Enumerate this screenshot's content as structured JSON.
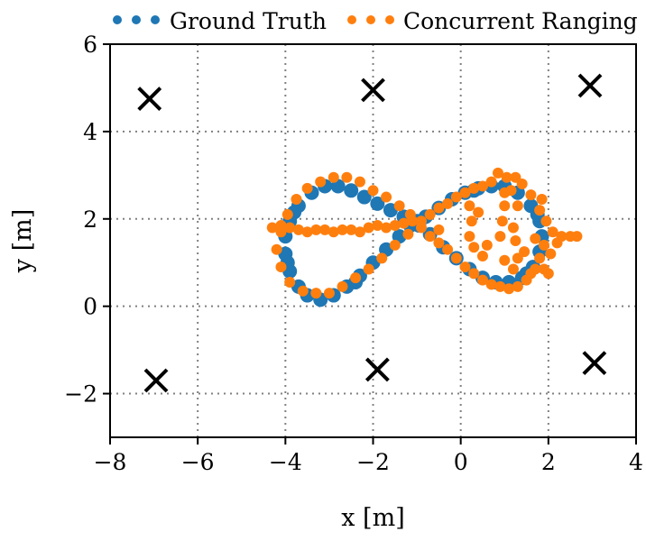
{
  "chart_data": {
    "type": "scatter",
    "xlabel": "x [m]",
    "ylabel": "y [m]",
    "xlim": [
      -8,
      4
    ],
    "ylim": [
      -3,
      6
    ],
    "xticks": [
      -8,
      -6,
      -4,
      -2,
      0,
      2,
      4
    ],
    "yticks": [
      -2,
      0,
      2,
      4,
      6
    ],
    "xtick_labels": [
      "−8",
      "−6",
      "−4",
      "−2",
      "0",
      "2",
      "4"
    ],
    "ytick_labels": [
      "−2",
      "0",
      "2",
      "4",
      "6"
    ],
    "grid": true,
    "legend_placement": "top",
    "anchors": [
      {
        "x": -7.1,
        "y": 4.75
      },
      {
        "x": -2.0,
        "y": 4.95
      },
      {
        "x": 2.95,
        "y": 5.05
      },
      {
        "x": -6.95,
        "y": -1.7
      },
      {
        "x": -1.9,
        "y": -1.45
      },
      {
        "x": 3.05,
        "y": -1.3
      }
    ],
    "series": [
      {
        "name": "Ground Truth",
        "color": "#1f77b4",
        "marker": "dot",
        "points": [
          [
            -1.0,
            1.95
          ],
          [
            -1.3,
            2.05
          ],
          [
            -1.6,
            2.2
          ],
          [
            -1.9,
            2.35
          ],
          [
            -2.2,
            2.5
          ],
          [
            -2.5,
            2.65
          ],
          [
            -2.8,
            2.75
          ],
          [
            -3.1,
            2.75
          ],
          [
            -3.4,
            2.6
          ],
          [
            -3.7,
            2.3
          ],
          [
            -3.9,
            1.95
          ],
          [
            -4.0,
            1.6
          ],
          [
            -4.0,
            1.2
          ],
          [
            -3.9,
            0.8
          ],
          [
            -3.7,
            0.45
          ],
          [
            -3.5,
            0.25
          ],
          [
            -3.2,
            0.15
          ],
          [
            -2.9,
            0.25
          ],
          [
            -2.6,
            0.45
          ],
          [
            -2.3,
            0.7
          ],
          [
            -2.0,
            1.0
          ],
          [
            -1.7,
            1.3
          ],
          [
            -1.4,
            1.6
          ],
          [
            -1.15,
            1.85
          ],
          [
            -0.8,
            2.05
          ],
          [
            -0.5,
            2.25
          ],
          [
            -0.2,
            2.45
          ],
          [
            0.1,
            2.6
          ],
          [
            0.4,
            2.7
          ],
          [
            0.7,
            2.75
          ],
          [
            1.0,
            2.75
          ],
          [
            1.3,
            2.6
          ],
          [
            1.6,
            2.3
          ],
          [
            1.8,
            1.95
          ],
          [
            1.85,
            1.6
          ],
          [
            1.8,
            1.25
          ],
          [
            1.65,
            0.9
          ],
          [
            1.4,
            0.65
          ],
          [
            1.1,
            0.55
          ],
          [
            0.8,
            0.55
          ],
          [
            0.5,
            0.65
          ],
          [
            0.2,
            0.85
          ],
          [
            -0.1,
            1.1
          ],
          [
            -0.4,
            1.35
          ],
          [
            -0.7,
            1.65
          ],
          [
            -0.95,
            1.85
          ],
          [
            -3.95,
            1.0
          ],
          [
            -3.8,
            2.15
          ],
          [
            -2.4,
            0.55
          ],
          [
            0.3,
            2.65
          ],
          [
            1.5,
            0.75
          ],
          [
            1.75,
            2.1
          ]
        ]
      },
      {
        "name": "Concurrent Ranging",
        "color": "#ff7f0e",
        "marker": "dot",
        "points": [
          [
            -4.3,
            1.8
          ],
          [
            -4.1,
            1.85
          ],
          [
            -3.9,
            1.8
          ],
          [
            -3.7,
            1.75
          ],
          [
            -3.5,
            1.7
          ],
          [
            -3.3,
            1.75
          ],
          [
            -3.1,
            1.75
          ],
          [
            -2.9,
            1.7
          ],
          [
            -2.7,
            1.75
          ],
          [
            -2.5,
            1.75
          ],
          [
            -2.3,
            1.7
          ],
          [
            -2.1,
            1.8
          ],
          [
            -1.9,
            1.85
          ],
          [
            -1.7,
            1.8
          ],
          [
            -1.5,
            1.85
          ],
          [
            -1.3,
            1.9
          ],
          [
            -1.1,
            1.95
          ],
          [
            -0.9,
            1.95
          ],
          [
            -0.7,
            2.1
          ],
          [
            -0.5,
            2.25
          ],
          [
            -0.3,
            2.35
          ],
          [
            -0.1,
            2.5
          ],
          [
            0.1,
            2.6
          ],
          [
            0.3,
            2.7
          ],
          [
            0.5,
            2.75
          ],
          [
            0.7,
            2.85
          ],
          [
            0.85,
            3.05
          ],
          [
            1.05,
            2.95
          ],
          [
            1.25,
            2.95
          ],
          [
            1.4,
            2.8
          ],
          [
            1.6,
            2.55
          ],
          [
            1.8,
            2.2
          ],
          [
            1.95,
            1.95
          ],
          [
            2.1,
            1.7
          ],
          [
            2.3,
            1.6
          ],
          [
            2.5,
            1.6
          ],
          [
            2.65,
            1.6
          ],
          [
            1.9,
            1.4
          ],
          [
            1.8,
            1.1
          ],
          [
            1.7,
            0.85
          ],
          [
            1.5,
            0.6
          ],
          [
            1.3,
            0.45
          ],
          [
            1.1,
            0.4
          ],
          [
            0.9,
            0.45
          ],
          [
            0.7,
            0.5
          ],
          [
            0.5,
            0.6
          ],
          [
            0.3,
            0.75
          ],
          [
            0.1,
            0.9
          ],
          [
            -0.1,
            1.1
          ],
          [
            -0.3,
            1.3
          ],
          [
            -0.5,
            1.45
          ],
          [
            -0.7,
            1.6
          ],
          [
            -0.9,
            1.8
          ],
          [
            -1.2,
            1.65
          ],
          [
            -1.5,
            1.4
          ],
          [
            -1.8,
            1.1
          ],
          [
            -2.1,
            0.85
          ],
          [
            -2.4,
            0.65
          ],
          [
            -2.7,
            0.45
          ],
          [
            -3.0,
            0.3
          ],
          [
            -3.3,
            0.3
          ],
          [
            -3.6,
            0.35
          ],
          [
            -3.9,
            0.55
          ],
          [
            -4.1,
            0.9
          ],
          [
            -4.2,
            1.3
          ],
          [
            -4.1,
            1.7
          ],
          [
            -3.95,
            2.1
          ],
          [
            -3.75,
            2.45
          ],
          [
            -3.5,
            2.7
          ],
          [
            -3.2,
            2.85
          ],
          [
            -2.9,
            2.95
          ],
          [
            -2.6,
            2.95
          ],
          [
            -2.3,
            2.85
          ],
          [
            -2.0,
            2.65
          ],
          [
            -1.7,
            2.5
          ],
          [
            -1.4,
            2.3
          ],
          [
            -1.15,
            2.1
          ],
          [
            0.2,
            2.3
          ],
          [
            0.25,
            1.95
          ],
          [
            0.2,
            1.6
          ],
          [
            0.3,
            1.35
          ],
          [
            0.5,
            1.15
          ],
          [
            0.6,
            1.4
          ],
          [
            0.9,
            1.6
          ],
          [
            0.95,
            1.95
          ],
          [
            1.0,
            2.3
          ],
          [
            1.0,
            2.6
          ],
          [
            1.2,
            1.8
          ],
          [
            1.25,
            1.5
          ],
          [
            1.3,
            1.1
          ],
          [
            1.2,
            0.85
          ],
          [
            1.3,
            2.3
          ],
          [
            1.45,
            1.25
          ],
          [
            1.6,
            0.75
          ],
          [
            1.9,
            0.85
          ],
          [
            2.05,
            1.2
          ],
          [
            2.2,
            1.45
          ],
          [
            2.0,
            0.75
          ],
          [
            1.85,
            2.45
          ],
          [
            1.0,
            1.05
          ],
          [
            0.4,
            2.15
          ],
          [
            -0.5,
            1.75
          ],
          [
            1.15,
            2.65
          ],
          [
            1.7,
            1.55
          ]
        ]
      }
    ]
  }
}
